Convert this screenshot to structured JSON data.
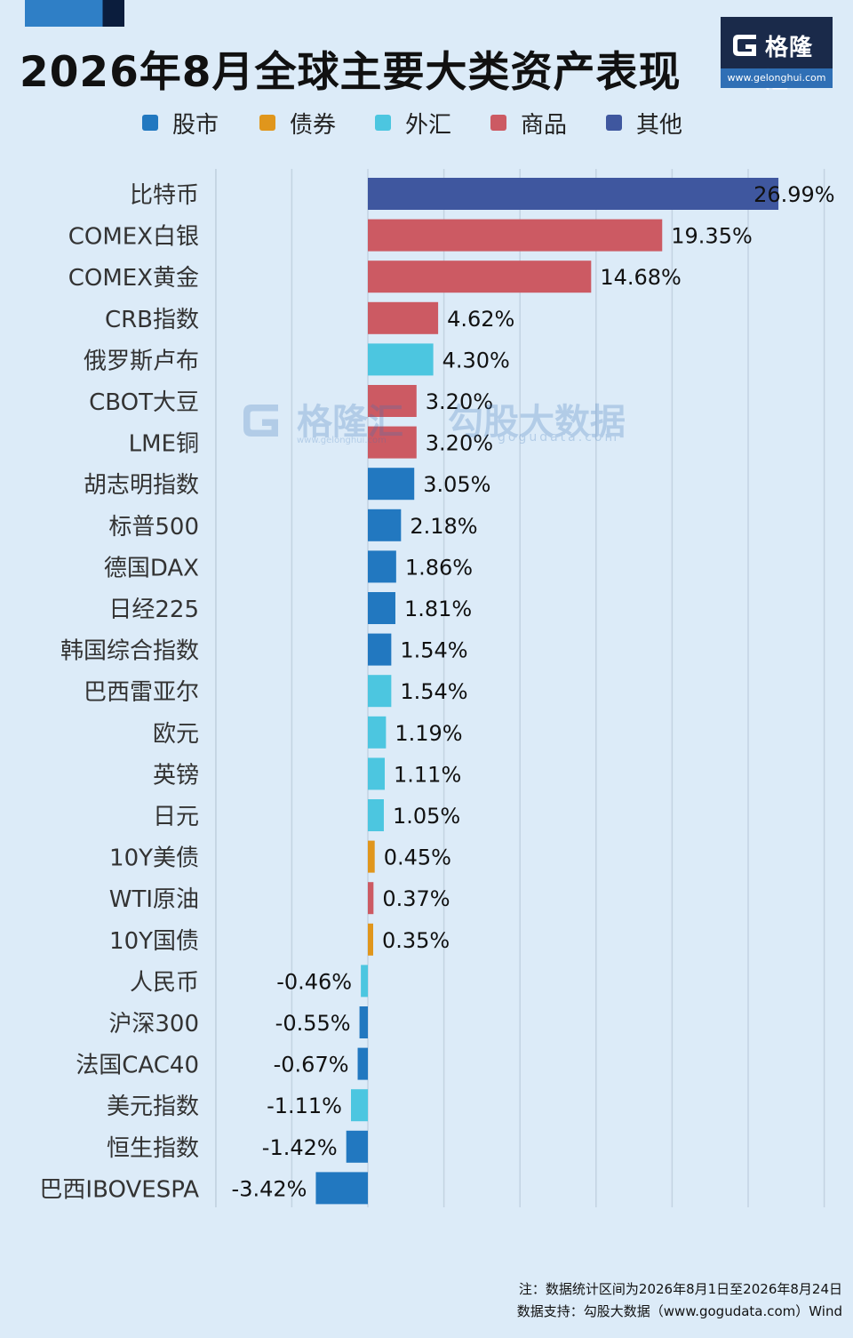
{
  "header": {
    "title": "2026年8月全球主要大类资产表现",
    "logo": {
      "brand": "格隆汇",
      "url": "www.gelonghui.com"
    }
  },
  "legend": [
    {
      "label": "股市",
      "color": "#2278c0"
    },
    {
      "label": "债券",
      "color": "#e0961c"
    },
    {
      "label": "外汇",
      "color": "#4cc6e0"
    },
    {
      "label": "商品",
      "color": "#cc5a63"
    },
    {
      "label": "其他",
      "color": "#3f579f"
    }
  ],
  "watermark": {
    "brand": "格隆汇",
    "brand2": "勾股大数据",
    "url1": "www.gelonghui.com",
    "url2": "gogudata.com"
  },
  "chart_data": {
    "type": "bar",
    "orientation": "horizontal",
    "xlim": [
      -10,
      30
    ],
    "grid": true,
    "categories": [
      "比特币",
      "COMEX白银",
      "COMEX黄金",
      "CRB指数",
      "俄罗斯卢布",
      "CBOT大豆",
      "LME铜",
      "胡志明指数",
      "标普500",
      "德国DAX",
      "日经225",
      "韩国综合指数",
      "巴西雷亚尔",
      "欧元",
      "英镑",
      "日元",
      "10Y美债",
      "WTI原油",
      "10Y国债",
      "人民币",
      "沪深300",
      "法国CAC40",
      "美元指数",
      "恒生指数",
      "巴西IBOVESPA"
    ],
    "values": [
      26.99,
      19.35,
      14.68,
      4.62,
      4.3,
      3.2,
      3.2,
      3.05,
      2.18,
      1.86,
      1.81,
      1.54,
      1.54,
      1.19,
      1.11,
      1.05,
      0.45,
      0.37,
      0.35,
      -0.46,
      -0.55,
      -0.67,
      -1.11,
      -1.42,
      -3.42
    ],
    "labels": [
      "26.99%",
      "19.35%",
      "14.68%",
      "4.62%",
      "4.30%",
      "3.20%",
      "3.20%",
      "3.05%",
      "2.18%",
      "1.86%",
      "1.81%",
      "1.54%",
      "1.54%",
      "1.19%",
      "1.11%",
      "1.05%",
      "0.45%",
      "0.37%",
      "0.35%",
      "-0.46%",
      "-0.55%",
      "-0.67%",
      "-1.11%",
      "-1.42%",
      "-3.42%"
    ],
    "groups": [
      "其他",
      "商品",
      "商品",
      "商品",
      "外汇",
      "商品",
      "商品",
      "股市",
      "股市",
      "股市",
      "股市",
      "股市",
      "外汇",
      "外汇",
      "外汇",
      "外汇",
      "债券",
      "商品",
      "债券",
      "外汇",
      "股市",
      "股市",
      "外汇",
      "股市",
      "股市"
    ]
  },
  "footer": {
    "note": "注：数据统计区间为2026年8月1日至2026年8月24日",
    "source": "数据支持：勾股大数据（www.gogudata.com）Wind"
  }
}
